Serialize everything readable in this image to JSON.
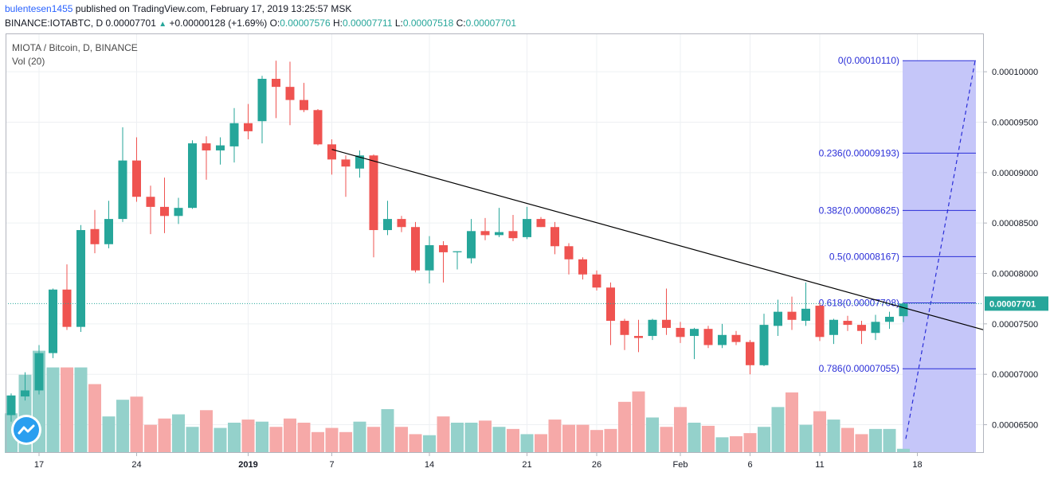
{
  "header": {
    "user": "bulentesen1455",
    "published_text": "published on TradingView.com, February 17, 2019 13:25:57 MSK",
    "symbol_line": "BINANCE:IOTABTC, D",
    "last": "0.00007701",
    "change_icon": "triangle-up-icon",
    "change": "+0.00000128 (+1.69%)",
    "o_label": "O:",
    "o": "0.00007576",
    "h_label": "H:",
    "h": "0.00007711",
    "l_label": "L:",
    "l": "0.00007518",
    "c_label": "C:",
    "c": "0.00007701"
  },
  "legend": {
    "title": "MIOTA / Bitcoin, D, BINANCE",
    "volume": "Vol (20)"
  },
  "logo": "tradingview-logo-icon",
  "colors": {
    "up": "#26a69a",
    "down": "#ef5350",
    "vol_up": "#94d1cb",
    "vol_down": "#f6a9a8",
    "fib": "#2a2ed8",
    "fib_fill": "#c5c6f9",
    "price_label_bg": "#26a69a",
    "grid": "#eef0f3"
  },
  "chart_data": {
    "type": "candlestick",
    "symbol": "BINANCE:IOTABTC",
    "interval": "D",
    "ylim": [
      6.22e-05,
      0.0001038
    ],
    "y_ticks": [
      "0.00010000",
      "0.00009500",
      "0.00009000",
      "0.00008500",
      "0.00008000",
      "0.00007500",
      "0.00007000",
      "0.00006500"
    ],
    "y_tick_values": [
      0.0001,
      9.5e-05,
      9e-05,
      8.5e-05,
      8e-05,
      7.5e-05,
      7e-05,
      6.5e-05
    ],
    "x_ticks": [
      {
        "label": "17",
        "index": 2
      },
      {
        "label": "24",
        "index": 9
      },
      {
        "label": "2019",
        "index": 17
      },
      {
        "label": "7",
        "index": 23
      },
      {
        "label": "14",
        "index": 30
      },
      {
        "label": "21",
        "index": 37
      },
      {
        "label": "26",
        "index": 42
      },
      {
        "label": "Feb",
        "index": 48
      },
      {
        "label": "6",
        "index": 53
      },
      {
        "label": "11",
        "index": 58
      },
      {
        "label": "18",
        "index": 65
      }
    ],
    "current_price": "0.00007701",
    "current_value": 7.701e-05,
    "candles": [
      [
        6.595e-05,
        6.79e-05,
        6.53e-05,
        6.81e-05
      ],
      [
        6.78e-05,
        6.84e-05,
        6.74e-05,
        7.02e-05
      ],
      [
        6.84e-05,
        7.21e-05,
        6.8e-05,
        7.29e-05
      ],
      [
        7.21e-05,
        7.84e-05,
        7.16e-05,
        7.85e-05
      ],
      [
        7.84e-05,
        7.47e-05,
        7.44e-05,
        8.09e-05
      ],
      [
        7.47e-05,
        8.43e-05,
        7.42e-05,
        8.48e-05
      ],
      [
        8.44e-05,
        8.29e-05,
        8.2e-05,
        8.63e-05
      ],
      [
        8.29e-05,
        8.54e-05,
        8.25e-05,
        8.72e-05
      ],
      [
        8.54e-05,
        9.12e-05,
        8.51e-05,
        9.45e-05
      ],
      [
        9.12e-05,
        8.76e-05,
        8.71e-05,
        9.35e-05
      ],
      [
        8.76e-05,
        8.66e-05,
        8.39e-05,
        8.87e-05
      ],
      [
        8.66e-05,
        8.57e-05,
        8.4e-05,
        8.95e-05
      ],
      [
        8.57e-05,
        8.65e-05,
        8.49e-05,
        8.75e-05
      ],
      [
        8.65e-05,
        9.29e-05,
        8.64e-05,
        9.32e-05
      ],
      [
        9.29e-05,
        9.22e-05,
        8.93e-05,
        9.36e-05
      ],
      [
        9.22e-05,
        9.27e-05,
        9.08e-05,
        9.35e-05
      ],
      [
        9.26e-05,
        9.49e-05,
        9.1e-05,
        9.64e-05
      ],
      [
        9.49e-05,
        9.41e-05,
        9.33e-05,
        9.68e-05
      ],
      [
        9.51e-05,
        9.93e-05,
        9.29e-05,
        9.96e-05
      ],
      [
        9.93e-05,
        9.85e-05,
        9.54e-05,
        0.0001011
      ],
      [
        9.85e-05,
        9.72e-05,
        9.47e-05,
        0.000101
      ],
      [
        9.72e-05,
        9.62e-05,
        9.6e-05,
        9.89e-05
      ],
      [
        9.62e-05,
        9.28e-05,
        9.27e-05,
        9.63e-05
      ],
      [
        9.28e-05,
        9.13e-05,
        8.98e-05,
        9.33e-05
      ],
      [
        9.13e-05,
        9.06e-05,
        8.76e-05,
        9.17e-05
      ],
      [
        9.04e-05,
        9.17e-05,
        8.95e-05,
        9.22e-05
      ],
      [
        9.17e-05,
        8.43e-05,
        8.16e-05,
        9.18e-05
      ],
      [
        8.43e-05,
        8.54e-05,
        8.38e-05,
        8.72e-05
      ],
      [
        8.54e-05,
        8.46e-05,
        8.41e-05,
        8.57e-05
      ],
      [
        8.46e-05,
        8.03e-05,
        8.01e-05,
        8.51e-05
      ],
      [
        8.03e-05,
        8.28e-05,
        7.9e-05,
        8.37e-05
      ],
      [
        8.28e-05,
        8.21e-05,
        7.91e-05,
        8.32e-05
      ],
      [
        8.21e-05,
        8.22e-05,
        8.04e-05,
        8.22e-05
      ],
      [
        8.15e-05,
        8.42e-05,
        8.1e-05,
        8.54e-05
      ],
      [
        8.42e-05,
        8.38e-05,
        8.33e-05,
        8.55e-05
      ],
      [
        8.38e-05,
        8.41e-05,
        8.36e-05,
        8.65e-05
      ],
      [
        8.42e-05,
        8.35e-05,
        8.32e-05,
        8.58e-05
      ],
      [
        8.36e-05,
        8.54e-05,
        8.34e-05,
        8.66e-05
      ],
      [
        8.54e-05,
        8.46e-05,
        8.46e-05,
        8.56e-05
      ],
      [
        8.46e-05,
        8.27e-05,
        8.19e-05,
        8.51e-05
      ],
      [
        8.27e-05,
        8.14e-05,
        7.99e-05,
        8.3e-05
      ],
      [
        8.14e-05,
        7.99e-05,
        7.94e-05,
        8.16e-05
      ],
      [
        7.99e-05,
        7.86e-05,
        7.83e-05,
        8.03e-05
      ],
      [
        7.86e-05,
        7.53e-05,
        7.29e-05,
        7.91e-05
      ],
      [
        7.53e-05,
        7.39e-05,
        7.24e-05,
        7.55e-05
      ],
      [
        7.38e-05,
        7.36e-05,
        7.22e-05,
        7.54e-05
      ],
      [
        7.38e-05,
        7.54e-05,
        7.34e-05,
        7.55e-05
      ],
      [
        7.54e-05,
        7.46e-05,
        7.39e-05,
        7.85e-05
      ],
      [
        7.46e-05,
        7.37e-05,
        7.31e-05,
        7.52e-05
      ],
      [
        7.38e-05,
        7.45e-05,
        7.15e-05,
        7.46e-05
      ],
      [
        7.45e-05,
        7.29e-05,
        7.26e-05,
        7.48e-05
      ],
      [
        7.29e-05,
        7.39e-05,
        7.26e-05,
        7.5e-05
      ],
      [
        7.39e-05,
        7.32e-05,
        7.29e-05,
        7.43e-05
      ],
      [
        7.32e-05,
        7.09e-05,
        7e-05,
        7.34e-05
      ],
      [
        7.09e-05,
        7.49e-05,
        7.08e-05,
        7.6e-05
      ],
      [
        7.48e-05,
        7.62e-05,
        7.38e-05,
        7.74e-05
      ],
      [
        7.62e-05,
        7.54e-05,
        7.44e-05,
        7.77e-05
      ],
      [
        7.53e-05,
        7.65e-05,
        7.48e-05,
        7.91e-05
      ],
      [
        7.68e-05,
        7.37e-05,
        7.33e-05,
        7.71e-05
      ],
      [
        7.39e-05,
        7.54e-05,
        7.3e-05,
        7.55e-05
      ],
      [
        7.53e-05,
        7.49e-05,
        7.43e-05,
        7.58e-05
      ],
      [
        7.49e-05,
        7.43e-05,
        7.3e-05,
        7.53e-05
      ],
      [
        7.41e-05,
        7.52e-05,
        7.34e-05,
        7.59e-05
      ],
      [
        7.52e-05,
        7.57e-05,
        7.45e-05,
        7.62e-05
      ],
      [
        7.576e-05,
        7.701e-05,
        7.518e-05,
        7.711e-05
      ]
    ],
    "volume_heights": [
      0.38,
      0.75,
      0.98,
      0.82,
      0.82,
      0.82,
      0.66,
      0.35,
      0.51,
      0.54,
      0.27,
      0.33,
      0.37,
      0.25,
      0.41,
      0.24,
      0.29,
      0.32,
      0.3,
      0.25,
      0.33,
      0.29,
      0.2,
      0.24,
      0.2,
      0.3,
      0.25,
      0.42,
      0.25,
      0.18,
      0.17,
      0.35,
      0.29,
      0.29,
      0.31,
      0.25,
      0.23,
      0.18,
      0.18,
      0.32,
      0.27,
      0.27,
      0.22,
      0.23,
      0.49,
      0.59,
      0.34,
      0.25,
      0.44,
      0.29,
      0.26,
      0.15,
      0.16,
      0.19,
      0.25,
      0.44,
      0.58,
      0.27,
      0.4,
      0.32,
      0.24,
      0.18,
      0.23,
      0.23,
      0.04
    ],
    "trendline": {
      "start_index": 23,
      "start_value": 9.23e-05,
      "end_value": 7.44e-05
    },
    "fibonacci": [
      {
        "label": "0(0.00010110)",
        "value": 0.0001011
      },
      {
        "label": "0.236(0.00009193)",
        "value": 9.193e-05
      },
      {
        "label": "0.382(0.00008625)",
        "value": 8.625e-05
      },
      {
        "label": "0.5(0.00008167)",
        "value": 8.167e-05
      },
      {
        "label": "0.618(0.00007708)",
        "value": 7.708e-05
      },
      {
        "label": "0.786(0.00007055)",
        "value": 7.055e-05
      }
    ],
    "fib_dashed_start": 6.36e-05,
    "fib_dashed_end": 0.0001011
  }
}
